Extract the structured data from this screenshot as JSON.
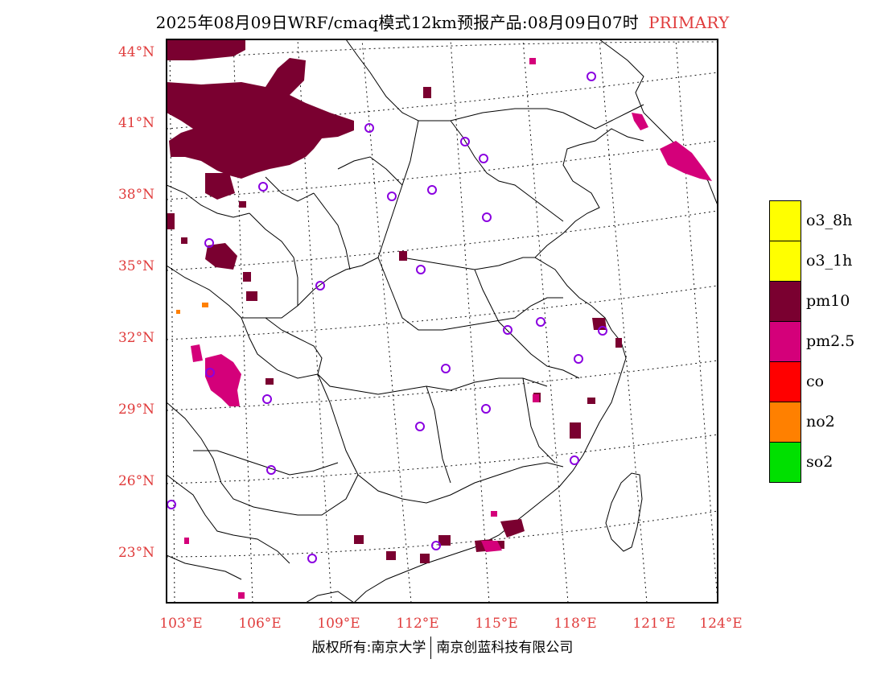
{
  "title": {
    "main": "2025年08月09日WRF/cmaq模式12km预报产品:08月09日07时",
    "tag": "PRIMARY"
  },
  "lat_labels": [
    "44°N",
    "41°N",
    "38°N",
    "35°N",
    "32°N",
    "29°N",
    "26°N",
    "23°N"
  ],
  "lon_labels": [
    "103°E",
    "106°E",
    "109°E",
    "112°E",
    "115°E",
    "118°E",
    "121°E",
    "124°E"
  ],
  "legend": [
    {
      "label": "o3_8h",
      "color": "#ffff00"
    },
    {
      "label": "o3_1h",
      "color": "#ffff00"
    },
    {
      "label": "pm10",
      "color": "#7a0030"
    },
    {
      "label": "pm2.5",
      "color": "#d4007a"
    },
    {
      "label": "co",
      "color": "#ff0000"
    },
    {
      "label": "no2",
      "color": "#ff8000"
    },
    {
      "label": "so2",
      "color": "#00e000"
    }
  ],
  "colors": {
    "pm10": "#7a0030",
    "pm25": "#d4007a",
    "station": "#8a00e0",
    "label": "#e03c3c"
  },
  "footer": {
    "left": "版权所有:南京大学",
    "right": "南京创蓝科技有限公司"
  }
}
